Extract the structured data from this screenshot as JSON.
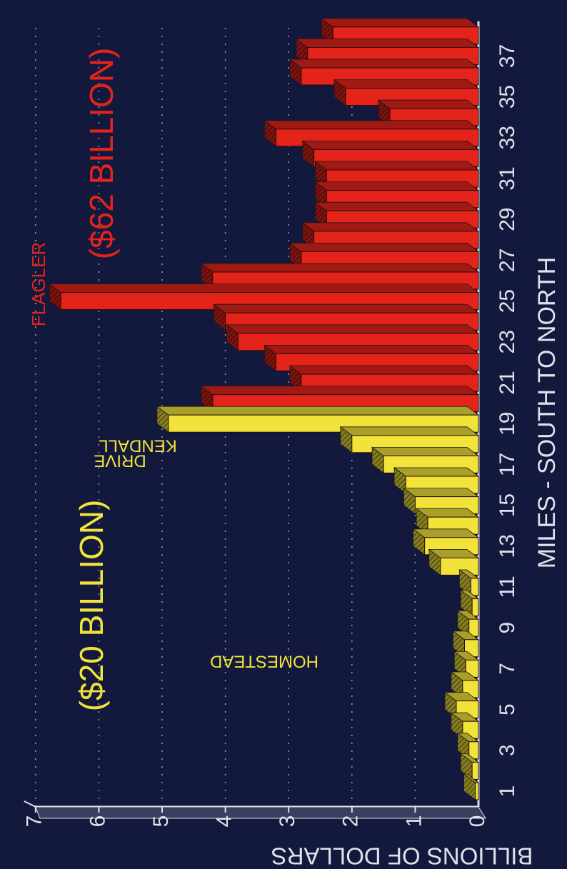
{
  "chart_data": {
    "type": "bar",
    "xlabel": "MILES - SOUTH TO NORTH",
    "ylabel": "BILLIONS OF DOLLARS",
    "ylim": [
      0,
      7
    ],
    "y_ticks": [
      "0",
      "1",
      "2",
      "3",
      "4",
      "5",
      "6",
      "7"
    ],
    "x_ticks": [
      "1",
      "3",
      "5",
      "7",
      "9",
      "11",
      "13",
      "15",
      "17",
      "19",
      "21",
      "23",
      "25",
      "27",
      "29",
      "31",
      "33",
      "35",
      "37"
    ],
    "grid": true,
    "orientation": "rotated 90 degrees",
    "x": [
      1,
      2,
      3,
      4,
      5,
      6,
      7,
      8,
      9,
      10,
      11,
      12,
      13,
      14,
      15,
      16,
      17,
      18,
      19,
      20,
      21,
      22,
      23,
      24,
      25,
      26,
      27,
      28,
      29,
      30,
      31,
      32,
      33,
      34,
      35,
      36,
      37,
      38
    ],
    "series": [
      {
        "name": "($20 BILLION)",
        "color": "#f2e33a",
        "values": [
          0.05,
          0.1,
          0.15,
          0.25,
          0.35,
          0.25,
          0.2,
          0.22,
          0.15,
          0.1,
          0.12,
          0.6,
          0.85,
          0.8,
          1.0,
          1.15,
          1.5,
          2.0,
          4.9,
          null,
          null,
          null,
          null,
          null,
          null,
          null,
          null,
          null,
          null,
          null,
          null,
          null,
          null,
          null,
          null,
          null,
          null,
          null
        ]
      },
      {
        "name": "($62 BILLION)",
        "color": "#e4231b",
        "values": [
          null,
          null,
          null,
          null,
          null,
          null,
          null,
          null,
          null,
          null,
          null,
          null,
          null,
          null,
          null,
          null,
          null,
          null,
          null,
          4.2,
          2.8,
          3.2,
          3.8,
          4.0,
          6.6,
          4.2,
          2.8,
          2.6,
          2.4,
          2.4,
          2.4,
          2.6,
          3.2,
          1.4,
          2.1,
          2.8,
          2.7,
          2.3
        ]
      }
    ],
    "annotations": [
      {
        "text": "HOMESTEAD",
        "color": "#f2e33a"
      },
      {
        "text": "KENDALL",
        "color": "#f2e33a"
      },
      {
        "text": "DRIVE",
        "color": "#f2e33a"
      },
      {
        "text": "FLAGLER",
        "color": "#e4231b"
      }
    ]
  },
  "colors": {
    "background": "#13183d",
    "axis_text": "#dfe2ea",
    "grid": "#cfd3dc",
    "frame": "#dfe2ea"
  }
}
